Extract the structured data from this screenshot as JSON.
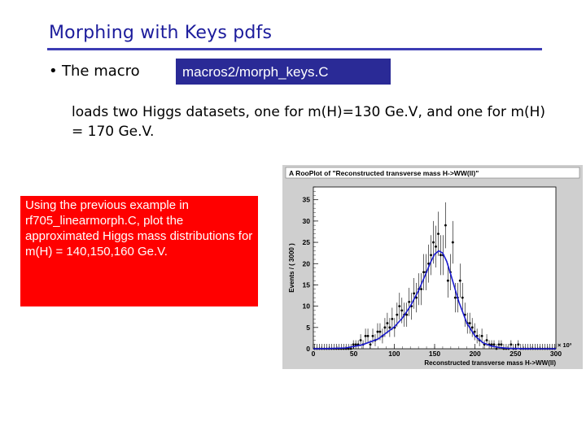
{
  "slide": {
    "title": "Morphing with Keys pdfs",
    "bullet_text": "The macro",
    "macro_path": "macros2/morph_keys.C",
    "paragraph": "loads two Higgs datasets, one for m(H)=130 Ge.V, and one for m(H) = 170 Ge.V.",
    "note": "Using the previous example in rf705_linearmorph.C, plot the approximated Higgs mass distributions for m(H) = 140,150,160 Ge.V."
  },
  "chart_data": {
    "type": "scatter",
    "title": "A RooPlot of \"Reconstructed transverse mass H->WW(ll)\"",
    "xlabel": "Reconstructed transverse mass H->WW(ll)",
    "ylabel": "Events / ( 3000 )",
    "x_multiplier_label": "× 10³",
    "xlim": [
      0,
      300000
    ],
    "ylim": [
      0,
      38
    ],
    "x_ticks": [
      "0",
      "50",
      "100",
      "150",
      "200",
      "250",
      "300"
    ],
    "y_ticks": [
      "0",
      "5",
      "10",
      "15",
      "20",
      "25",
      "30",
      "35"
    ],
    "colors": {
      "points": "#000000",
      "curve": "#1a1ad0"
    },
    "series": [
      {
        "kind": "data-points",
        "x": [
          1500,
          4500,
          7500,
          10500,
          13500,
          16500,
          19500,
          22500,
          25500,
          28500,
          31500,
          34500,
          37500,
          40500,
          43500,
          46500,
          49500,
          52500,
          55500,
          58500,
          61500,
          64500,
          67500,
          70500,
          73500,
          76500,
          79500,
          82500,
          85500,
          88500,
          91500,
          94500,
          97500,
          100500,
          103500,
          106500,
          109500,
          112500,
          115500,
          118500,
          121500,
          124500,
          127500,
          130500,
          133500,
          136500,
          139500,
          142500,
          145500,
          148500,
          151500,
          154500,
          157500,
          160500,
          163500,
          166500,
          169500,
          172500,
          175500,
          178500,
          181500,
          184500,
          187500,
          190500,
          193500,
          196500,
          199500,
          202500,
          205500,
          208500,
          211500,
          214500,
          217500,
          220500,
          223500,
          226500,
          229500,
          232500,
          235500,
          238500,
          241500,
          244500,
          247500,
          250500,
          253500,
          256500,
          259500,
          262500,
          265500,
          268500,
          271500,
          274500,
          277500,
          280500,
          283500,
          286500,
          289500,
          292500,
          295500,
          298500
        ],
        "y": [
          0,
          0,
          0,
          0,
          0,
          0,
          0,
          0,
          0,
          0,
          0,
          0,
          0,
          0,
          0,
          0,
          1,
          1,
          1,
          2,
          1,
          3,
          3,
          1,
          3,
          2,
          4,
          4,
          3,
          5,
          6,
          5,
          7,
          5,
          8,
          10,
          9,
          8,
          8,
          11,
          10,
          13,
          12,
          14,
          14,
          18,
          18,
          20,
          22,
          25,
          24,
          27,
          22,
          22,
          29,
          16,
          18,
          25,
          12,
          12,
          16,
          12,
          8,
          6,
          6,
          5,
          4,
          3,
          2,
          3,
          1,
          2,
          1,
          1,
          1,
          0,
          1,
          1,
          0,
          0,
          0,
          1,
          0,
          0,
          1,
          0,
          0,
          0,
          0,
          0,
          0,
          0,
          0,
          0,
          0,
          0,
          0,
          0,
          0,
          0
        ]
      },
      {
        "kind": "pdf-curve",
        "x": [
          0,
          20000,
          40000,
          60000,
          80000,
          100000,
          110000,
          120000,
          130000,
          140000,
          145000,
          150000,
          155000,
          160000,
          165000,
          170000,
          180000,
          190000,
          200000,
          210000,
          220000,
          230000,
          240000,
          250000,
          260000,
          280000,
          300000
        ],
        "y": [
          0,
          0.05,
          0.2,
          0.9,
          2.3,
          5.1,
          7.2,
          10.0,
          13.6,
          18.0,
          20.3,
          22.2,
          23.0,
          22.5,
          20.5,
          17.4,
          11.0,
          6.0,
          3.0,
          1.4,
          0.65,
          0.3,
          0.12,
          0.05,
          0.02,
          0,
          0
        ]
      }
    ]
  }
}
